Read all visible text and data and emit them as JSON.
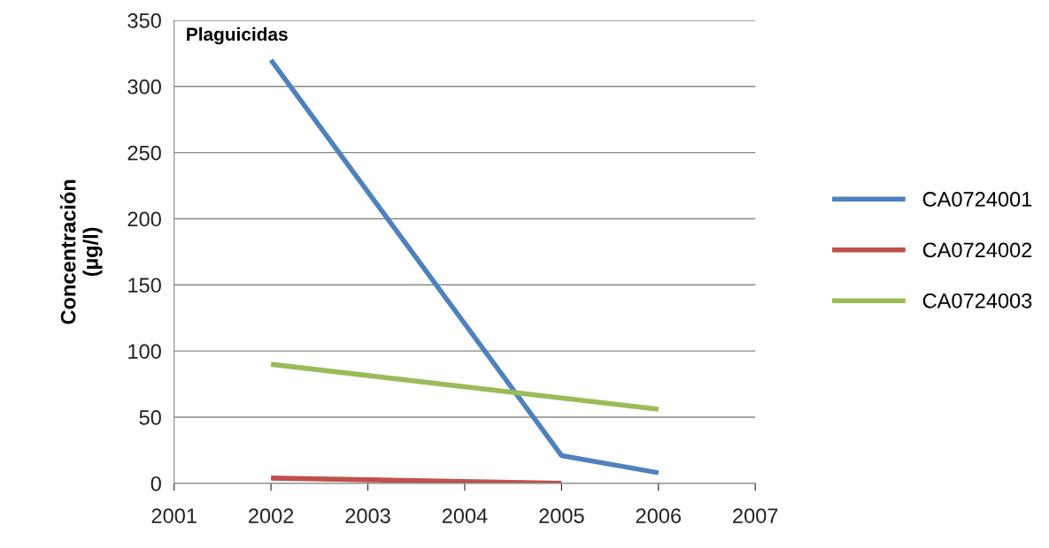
{
  "chart_data": {
    "type": "line",
    "ylabel": "Concentración\n(µg/l)",
    "annotations": [
      "Plaguicidas"
    ],
    "xlim": [
      2001,
      2007
    ],
    "xticks": [
      2001,
      2002,
      2003,
      2004,
      2005,
      2006,
      2007
    ],
    "ylim": [
      0,
      350
    ],
    "yticks": [
      0,
      50,
      100,
      150,
      200,
      250,
      300,
      350
    ],
    "grid": "y",
    "legend": "right",
    "marker": "none",
    "line_style": "solid",
    "series": [
      {
        "name": "CA0724001",
        "color": "#4f81bd",
        "x": [
          2002,
          2005,
          2006
        ],
        "values": [
          320,
          21,
          8
        ]
      },
      {
        "name": "CA0724002",
        "color": "#c0504d",
        "x": [
          2002,
          2005
        ],
        "values": [
          4,
          0
        ]
      },
      {
        "name": "CA0724003",
        "color": "#9bbb59",
        "x": [
          2002,
          2006
        ],
        "values": [
          90,
          56
        ]
      }
    ]
  }
}
